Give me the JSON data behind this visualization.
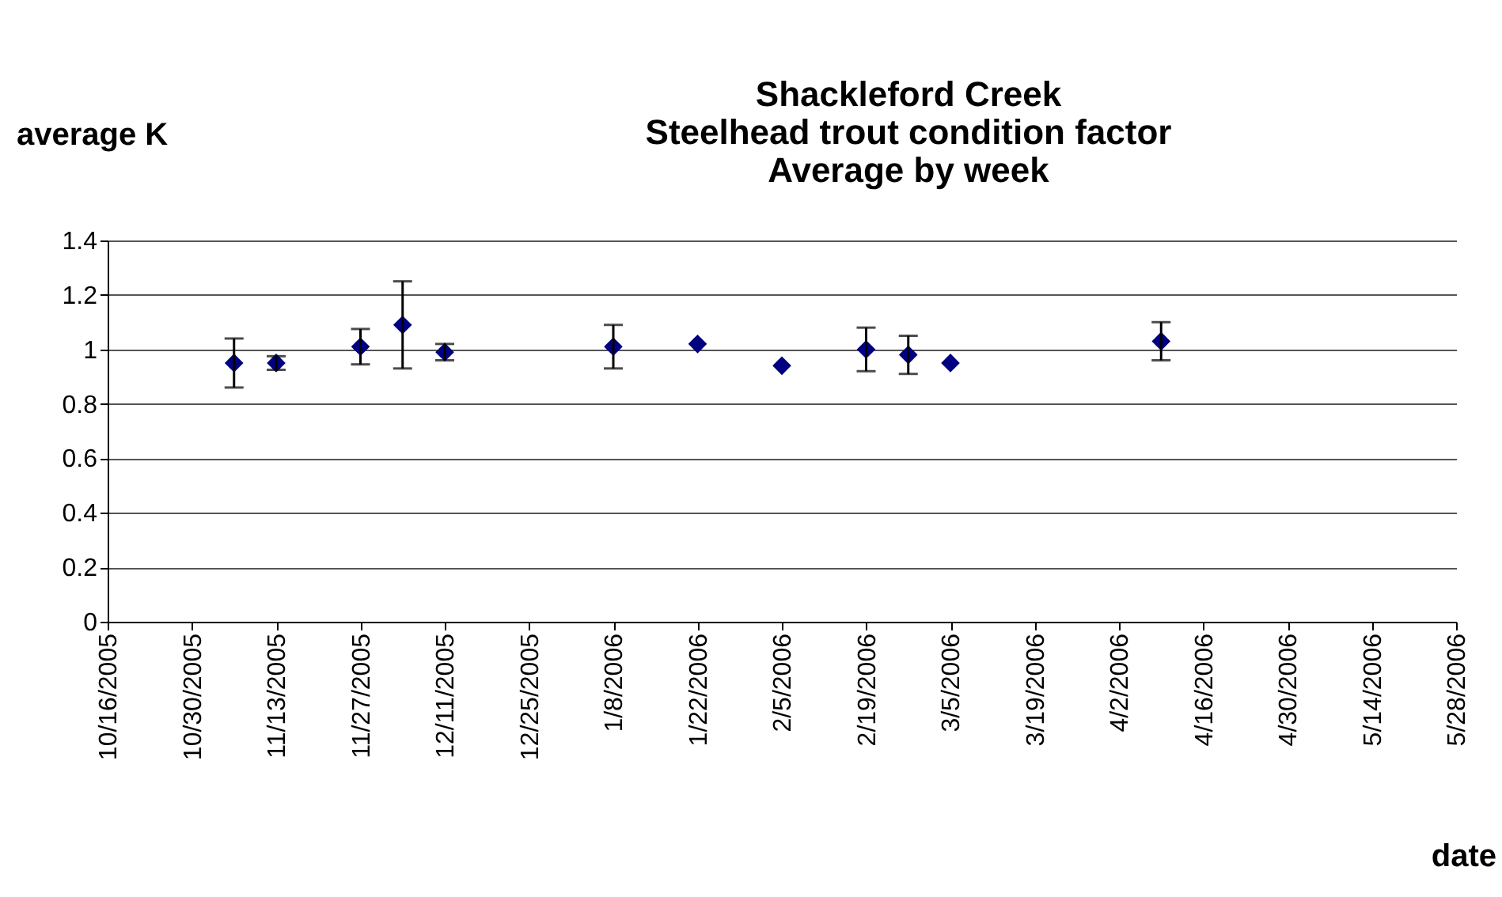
{
  "chart_data": {
    "type": "scatter",
    "title": [
      "Shackleford Creek",
      "Steelhead trout condition factor",
      "Average by week"
    ],
    "xlabel": "date",
    "ylabel": "average K",
    "x": [
      "2005-11-06",
      "2005-11-13",
      "2005-11-27",
      "2005-12-04",
      "2005-12-11",
      "2006-01-08",
      "2006-01-22",
      "2006-02-05",
      "2006-02-19",
      "2006-02-26",
      "2006-03-05",
      "2006-04-09"
    ],
    "series": [
      {
        "color": "#000080",
        "values": [
          0.95,
          0.95,
          1.01,
          1.09,
          0.99,
          1.01,
          1.02,
          0.94,
          1.0,
          0.98,
          0.95,
          1.03
        ],
        "errors": [
          0.09,
          0.025,
          0.065,
          0.16,
          0.03,
          0.08,
          null,
          null,
          0.08,
          0.07,
          null,
          0.07
        ]
      }
    ],
    "xlim": [
      "2005-10-16",
      "2006-05-28"
    ],
    "xticks": [
      {
        "value": "2005-10-16",
        "label": "10/16/2005"
      },
      {
        "value": "2005-10-30",
        "label": "10/30/2005"
      },
      {
        "value": "2005-11-13",
        "label": "11/13/2005"
      },
      {
        "value": "2005-11-27",
        "label": "11/27/2005"
      },
      {
        "value": "2005-12-11",
        "label": "12/11/2005"
      },
      {
        "value": "2005-12-25",
        "label": "12/25/2005"
      },
      {
        "value": "2006-01-08",
        "label": "1/8/2006"
      },
      {
        "value": "2006-01-22",
        "label": "1/22/2006"
      },
      {
        "value": "2006-02-05",
        "label": "2/5/2006"
      },
      {
        "value": "2006-02-19",
        "label": "2/19/2006"
      },
      {
        "value": "2006-03-05",
        "label": "3/5/2006"
      },
      {
        "value": "2006-03-19",
        "label": "3/19/2006"
      },
      {
        "value": "2006-04-02",
        "label": "4/2/2006"
      },
      {
        "value": "2006-04-16",
        "label": "4/16/2006"
      },
      {
        "value": "2006-04-30",
        "label": "4/30/2006"
      },
      {
        "value": "2006-05-14",
        "label": "5/14/2006"
      },
      {
        "value": "2006-05-28",
        "label": "5/28/2006"
      }
    ],
    "ylim": [
      0,
      1.4
    ],
    "yticks": [
      0,
      0.2,
      0.4,
      0.6,
      0.8,
      1,
      1.2,
      1.4
    ],
    "grid": "y",
    "marker": "diamond"
  }
}
